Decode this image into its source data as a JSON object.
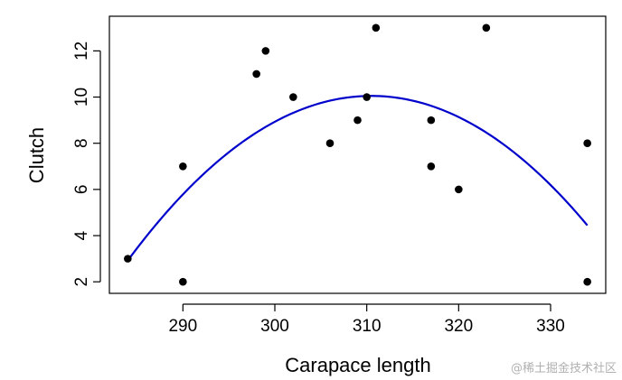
{
  "chart_data": {
    "type": "scatter",
    "xlabel": "Carapace length",
    "ylabel": "Clutch",
    "xlim": [
      282,
      336
    ],
    "ylim": [
      1.5,
      13.5
    ],
    "x_ticks": [
      290,
      300,
      310,
      320,
      330
    ],
    "y_ticks": [
      2,
      4,
      6,
      8,
      10,
      12
    ],
    "grid": false,
    "points": [
      {
        "x": 284,
        "y": 3
      },
      {
        "x": 290,
        "y": 2
      },
      {
        "x": 290,
        "y": 7
      },
      {
        "x": 298,
        "y": 11
      },
      {
        "x": 299,
        "y": 12
      },
      {
        "x": 302,
        "y": 10
      },
      {
        "x": 306,
        "y": 8
      },
      {
        "x": 309,
        "y": 9
      },
      {
        "x": 310,
        "y": 10
      },
      {
        "x": 311,
        "y": 13
      },
      {
        "x": 317,
        "y": 9
      },
      {
        "x": 317,
        "y": 7
      },
      {
        "x": 320,
        "y": 6
      },
      {
        "x": 323,
        "y": 13
      },
      {
        "x": 334,
        "y": 8
      },
      {
        "x": 334,
        "y": 2
      }
    ],
    "fit_curve": {
      "type": "quadratic",
      "x_range": [
        284,
        334
      ],
      "vertex": {
        "x": 310.5,
        "y": 10.05
      },
      "a": -0.01015,
      "color": "#0000cc"
    },
    "point_color": "#000000"
  },
  "watermark": "@稀土掘金技术社区"
}
